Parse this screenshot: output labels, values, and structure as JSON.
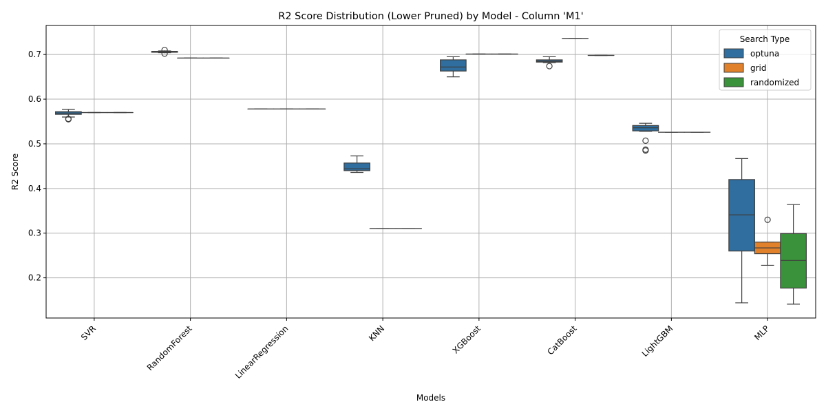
{
  "chart_data": {
    "type": "box",
    "title": "R2 Score Distribution (Lower Pruned) by Model - Column 'M1'",
    "xlabel": "Models",
    "ylabel": "R2 Score",
    "ylim": [
      0.11,
      0.765
    ],
    "yticks": [
      0.2,
      0.3,
      0.4,
      0.5,
      0.6,
      0.7
    ],
    "grid": true,
    "categories": [
      "SVR",
      "RandomForest",
      "LinearRegression",
      "KNN",
      "XGBoost",
      "CatBoost",
      "LightGBM",
      "MLP"
    ],
    "legend": {
      "title": "Search Type",
      "position": "top-right"
    },
    "series": [
      {
        "name": "optuna",
        "color": "#2f6e9f",
        "boxes": [
          {
            "min": 0.56,
            "q1": 0.566,
            "median": 0.569,
            "q3": 0.572,
            "max": 0.577,
            "outliers": [
              0.556,
              0.555
            ]
          },
          {
            "min": 0.704,
            "q1": 0.705,
            "median": 0.706,
            "q3": 0.707,
            "max": 0.708,
            "outliers": [
              0.702,
              0.71
            ]
          },
          {
            "min": 0.578,
            "q1": 0.578,
            "median": 0.578,
            "q3": 0.578,
            "max": 0.578,
            "outliers": []
          },
          {
            "min": 0.436,
            "q1": 0.44,
            "median": 0.444,
            "q3": 0.457,
            "max": 0.473,
            "outliers": []
          },
          {
            "min": 0.65,
            "q1": 0.663,
            "median": 0.672,
            "q3": 0.688,
            "max": 0.695,
            "outliers": []
          },
          {
            "min": 0.682,
            "q1": 0.683,
            "median": 0.685,
            "q3": 0.688,
            "max": 0.695,
            "outliers": [
              0.674
            ]
          },
          {
            "min": 0.528,
            "q1": 0.529,
            "median": 0.536,
            "q3": 0.541,
            "max": 0.546,
            "outliers": [
              0.507,
              0.487,
              0.485
            ]
          },
          {
            "min": 0.144,
            "q1": 0.26,
            "median": 0.341,
            "q3": 0.42,
            "max": 0.467,
            "outliers": []
          }
        ]
      },
      {
        "name": "grid",
        "color": "#e1812c",
        "boxes": [
          {
            "min": 0.57,
            "q1": 0.57,
            "median": 0.57,
            "q3": 0.57,
            "max": 0.57,
            "outliers": []
          },
          {
            "min": 0.692,
            "q1": 0.692,
            "median": 0.692,
            "q3": 0.692,
            "max": 0.692,
            "outliers": []
          },
          {
            "min": 0.578,
            "q1": 0.578,
            "median": 0.578,
            "q3": 0.578,
            "max": 0.578,
            "outliers": []
          },
          {
            "min": 0.31,
            "q1": 0.31,
            "median": 0.31,
            "q3": 0.31,
            "max": 0.31,
            "outliers": []
          },
          {
            "min": 0.701,
            "q1": 0.701,
            "median": 0.701,
            "q3": 0.701,
            "max": 0.701,
            "outliers": []
          },
          {
            "min": 0.736,
            "q1": 0.736,
            "median": 0.736,
            "q3": 0.736,
            "max": 0.736,
            "outliers": []
          },
          {
            "min": 0.526,
            "q1": 0.526,
            "median": 0.526,
            "q3": 0.526,
            "max": 0.526,
            "outliers": []
          },
          {
            "min": 0.228,
            "q1": 0.254,
            "median": 0.267,
            "q3": 0.28,
            "max": 0.28,
            "outliers": [
              0.33
            ]
          }
        ]
      },
      {
        "name": "randomized",
        "color": "#3a923a",
        "boxes": [
          {
            "min": 0.57,
            "q1": 0.57,
            "median": 0.57,
            "q3": 0.57,
            "max": 0.57,
            "outliers": []
          },
          {
            "min": 0.692,
            "q1": 0.692,
            "median": 0.692,
            "q3": 0.692,
            "max": 0.692,
            "outliers": []
          },
          {
            "min": 0.578,
            "q1": 0.578,
            "median": 0.578,
            "q3": 0.578,
            "max": 0.578,
            "outliers": []
          },
          {
            "min": 0.31,
            "q1": 0.31,
            "median": 0.31,
            "q3": 0.31,
            "max": 0.31,
            "outliers": []
          },
          {
            "min": 0.701,
            "q1": 0.701,
            "median": 0.701,
            "q3": 0.701,
            "max": 0.701,
            "outliers": []
          },
          {
            "min": 0.698,
            "q1": 0.698,
            "median": 0.698,
            "q3": 0.698,
            "max": 0.698,
            "outliers": []
          },
          {
            "min": 0.526,
            "q1": 0.526,
            "median": 0.526,
            "q3": 0.526,
            "max": 0.526,
            "outliers": []
          },
          {
            "min": 0.141,
            "q1": 0.177,
            "median": 0.239,
            "q3": 0.299,
            "max": 0.364,
            "outliers": []
          }
        ]
      }
    ]
  }
}
